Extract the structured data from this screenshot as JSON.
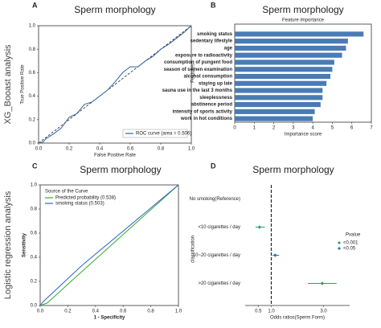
{
  "row_labels": [
    "XG_Booast analysis",
    "Logistic regression analysis"
  ],
  "chart_data": [
    {
      "type": "line",
      "panel_label": "A",
      "title": "Sperm morphology",
      "xlabel": "False Positive Rate",
      "ylabel": "True Positive Rate",
      "xlim": [
        0,
        1
      ],
      "ylim": [
        0,
        1
      ],
      "xticks": [
        {
          "value": 0,
          "label": "0.0"
        },
        0.2,
        0.4,
        0.6,
        0.8,
        {
          "value": 1,
          "label": "1.0"
        }
      ],
      "yticks": [
        {
          "value": 0,
          "label": "0.0"
        },
        0.2,
        0.4,
        0.6,
        0.8,
        {
          "value": 1,
          "label": "1.0"
        }
      ],
      "legend": "lower right",
      "series": [
        {
          "name": "ROC curve (area = 0.506)",
          "color": "#2f63a8",
          "x": [
            0,
            0.03,
            0.05,
            0.1,
            0.15,
            0.2,
            0.25,
            0.3,
            0.35,
            0.4,
            0.45,
            0.5,
            0.55,
            0.6,
            0.65,
            0.7,
            0.75,
            0.8,
            0.85,
            0.9,
            0.95,
            1
          ],
          "values": [
            0,
            0.01,
            0.04,
            0.08,
            0.13,
            0.22,
            0.25,
            0.33,
            0.35,
            0.4,
            0.45,
            0.52,
            0.6,
            0.65,
            0.65,
            0.7,
            0.74,
            0.8,
            0.84,
            0.89,
            0.94,
            1
          ]
        }
      ]
    },
    {
      "type": "barh",
      "panel_label": "B",
      "title": "Sperm morphology",
      "subtitle": "Feature importance",
      "xlabel": "Importance score",
      "ylabel": "Features",
      "categories": [
        "smoking status",
        "sedentary lifestyle",
        "age",
        "exposure to radioactivity",
        "consumption of pungent food",
        "season of semen examination",
        "alcohol consumption",
        "staying up late",
        "sauna use in the last 3 months",
        "sleeplessness",
        "abstinence period",
        "intensity of sports activity",
        "work in hot conditions"
      ],
      "values": [
        6.6,
        5.8,
        5.7,
        5.5,
        5.1,
        5.0,
        4.9,
        4.7,
        4.5,
        4.5,
        4.4,
        4.1,
        4.0
      ],
      "color": "#4a7bb5",
      "xlim": [
        0,
        7
      ],
      "xticks": [
        0,
        1,
        2,
        3,
        4,
        5,
        6,
        7
      ]
    },
    {
      "type": "line",
      "panel_label": "C",
      "title": "Sperm morphology",
      "xlabel": "1 - Specificity",
      "ylabel": "Sensitivity",
      "xlim": [
        0,
        1
      ],
      "ylim": [
        0,
        1
      ],
      "xticks": [
        {
          "value": 0,
          "label": "0.0"
        },
        0.2,
        0.4,
        0.6,
        0.8,
        {
          "value": 1,
          "label": "1.0"
        }
      ],
      "yticks": [
        {
          "value": 0,
          "label": "0.0"
        },
        0.2,
        0.4,
        0.6,
        0.8,
        {
          "value": 1,
          "label": "1.0"
        }
      ],
      "legend": "upper left",
      "legend_title": "Source of the Curve",
      "series": [
        {
          "name": "Predicted probability (0.538)",
          "color": "#3aaa35",
          "x": [
            0,
            0.05,
            0.3,
            1
          ],
          "values": [
            0,
            0.02,
            0.28,
            1
          ]
        },
        {
          "name": "smoking status (0.503)",
          "color": "#2f63c8",
          "x": [
            0,
            0.02,
            0.3,
            1
          ],
          "values": [
            0,
            0.03,
            0.33,
            1
          ]
        }
      ]
    },
    {
      "type": "forest",
      "panel_label": "D",
      "title": "Sperm morphology",
      "xlabel": "Odds ratios(Sperm Form)",
      "ylabel": "classification",
      "categories": [
        "No smoking(Reference)",
        "<10 cigarettes / day",
        "10~20 cigarettes / day",
        ">20 cigarettes / day"
      ],
      "values": [
        null,
        0.55,
        1.15,
        2.95
      ],
      "ci_low": [
        null,
        0.4,
        1.05,
        2.4
      ],
      "ci_high": [
        null,
        0.75,
        1.3,
        3.5
      ],
      "colors": [
        null,
        "#2ca25f",
        "#1f78b4",
        "#2ca25f"
      ],
      "reference_line": 1,
      "xlim": [
        0,
        4
      ],
      "xticks": [
        0.5,
        {
          "value": 1,
          "label": "1.0"
        },
        {
          "value": 3,
          "label": "3.0"
        }
      ],
      "legend_title": "Pvalue",
      "legend_items": [
        {
          "name": "<0.001",
          "color": "#2ca25f"
        },
        {
          "name": "<0.05",
          "color": "#1f78b4"
        }
      ]
    }
  ]
}
